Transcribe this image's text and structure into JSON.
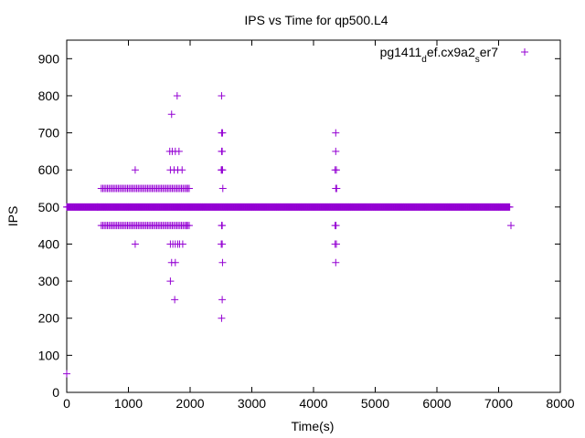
{
  "chart_data": {
    "type": "scatter",
    "title": "IPS vs Time for qp500.L4",
    "xlabel": "Time(s)",
    "ylabel": "IPS",
    "xlim": [
      0,
      8000
    ],
    "ylim": [
      0,
      950
    ],
    "x_ticks": [
      0,
      1000,
      2000,
      3000,
      4000,
      5000,
      6000,
      7000,
      8000
    ],
    "y_ticks": [
      0,
      100,
      200,
      300,
      400,
      500,
      600,
      700,
      800,
      900
    ],
    "grid": false,
    "legend_position": "top-right",
    "marker": "plus",
    "series": [
      {
        "name": "pg1411_def.cx9a2_ser7",
        "color": "#9400d3",
        "bands": [
          {
            "y": 500,
            "x_from": 0,
            "x_to": 7180,
            "step": 10
          },
          {
            "y": 550,
            "x_from": 560,
            "x_to": 2000,
            "step": 25
          },
          {
            "y": 450,
            "x_from": 560,
            "x_to": 2000,
            "step": 25
          }
        ],
        "points": [
          [
            0,
            50
          ],
          [
            500,
            500
          ],
          [
            1110,
            600
          ],
          [
            1110,
            400
          ],
          [
            1680,
            300
          ],
          [
            1700,
            350
          ],
          [
            1760,
            350
          ],
          [
            1700,
            750
          ],
          [
            1750,
            250
          ],
          [
            1790,
            800
          ],
          [
            1670,
            650
          ],
          [
            1710,
            650
          ],
          [
            1760,
            650
          ],
          [
            1820,
            650
          ],
          [
            1680,
            600
          ],
          [
            1740,
            600
          ],
          [
            1800,
            600
          ],
          [
            1870,
            600
          ],
          [
            1680,
            400
          ],
          [
            1720,
            400
          ],
          [
            1760,
            400
          ],
          [
            1800,
            400
          ],
          [
            1830,
            400
          ],
          [
            1880,
            400
          ],
          [
            1940,
            450
          ],
          [
            1960,
            550
          ],
          [
            2510,
            800
          ],
          [
            2510,
            700
          ],
          [
            2525,
            700
          ],
          [
            2510,
            650
          ],
          [
            2520,
            650
          ],
          [
            2505,
            600
          ],
          [
            2515,
            600
          ],
          [
            2525,
            600
          ],
          [
            2530,
            550
          ],
          [
            2510,
            450
          ],
          [
            2520,
            450
          ],
          [
            2505,
            400
          ],
          [
            2520,
            400
          ],
          [
            2525,
            350
          ],
          [
            2520,
            250
          ],
          [
            2510,
            200
          ],
          [
            4360,
            700
          ],
          [
            4360,
            650
          ],
          [
            4350,
            600
          ],
          [
            4370,
            600
          ],
          [
            4360,
            550
          ],
          [
            4375,
            550
          ],
          [
            4350,
            450
          ],
          [
            4365,
            450
          ],
          [
            4350,
            400
          ],
          [
            4370,
            400
          ],
          [
            4360,
            350
          ],
          [
            7200,
            450
          ]
        ]
      }
    ]
  }
}
